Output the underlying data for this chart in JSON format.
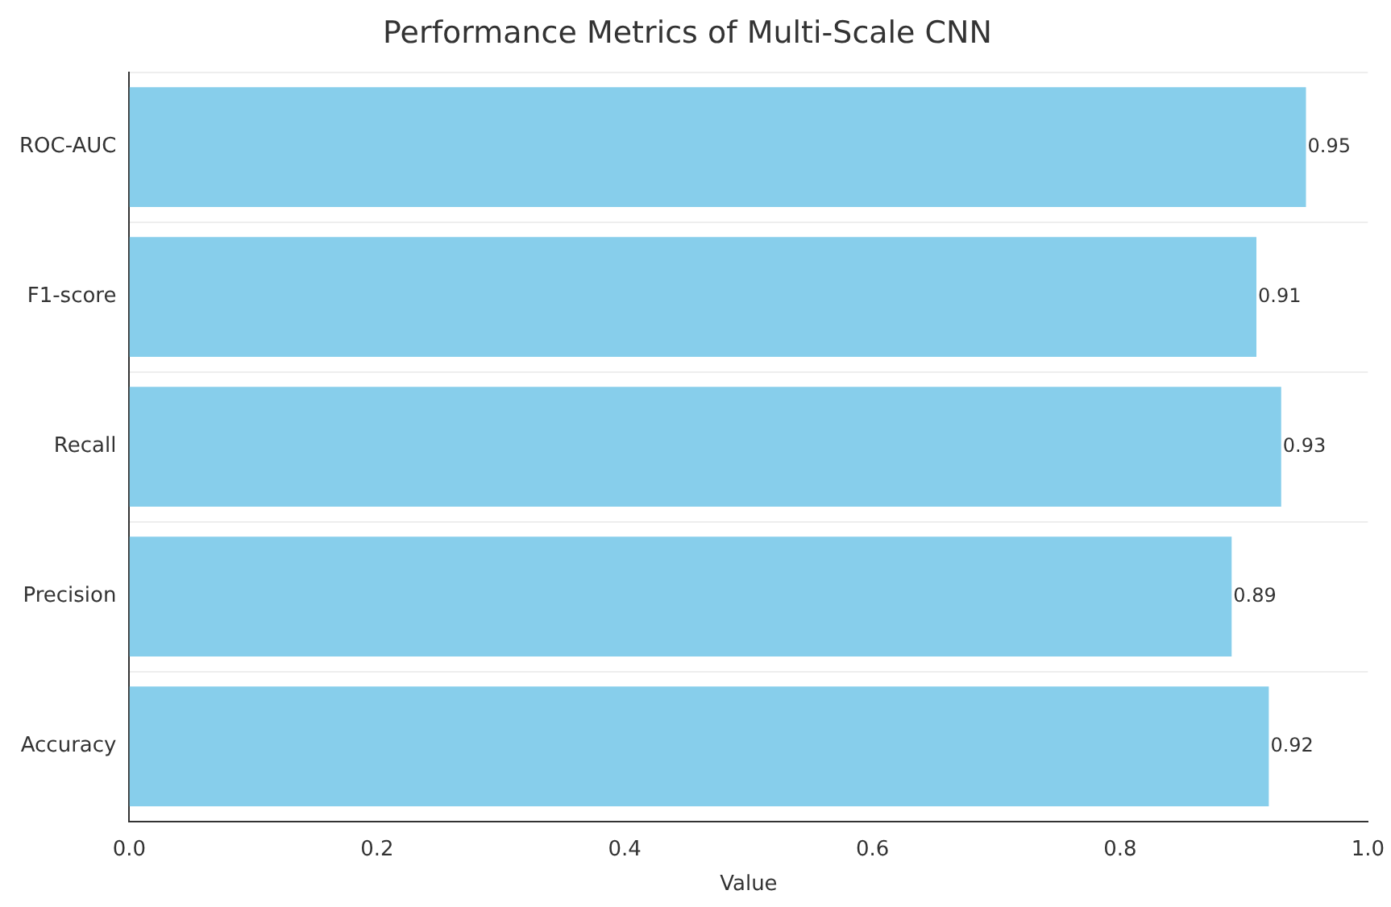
{
  "chart_data": {
    "type": "bar",
    "orientation": "horizontal",
    "title": "Performance Metrics of Multi-Scale CNN",
    "xlabel": "Value",
    "categories": [
      "ROC-AUC",
      "F1-score",
      "Recall",
      "Precision",
      "Accuracy"
    ],
    "values": [
      0.95,
      0.91,
      0.93,
      0.89,
      0.92
    ],
    "color": "#87ceeb",
    "xlim": [
      0,
      1
    ],
    "xticks": [
      {
        "value": 0,
        "label": "0.0"
      },
      0.2,
      0.4,
      0.6,
      0.8,
      {
        "value": 1,
        "label": "1.0"
      }
    ],
    "grid": "y",
    "data_labels": true,
    "legend": false
  }
}
